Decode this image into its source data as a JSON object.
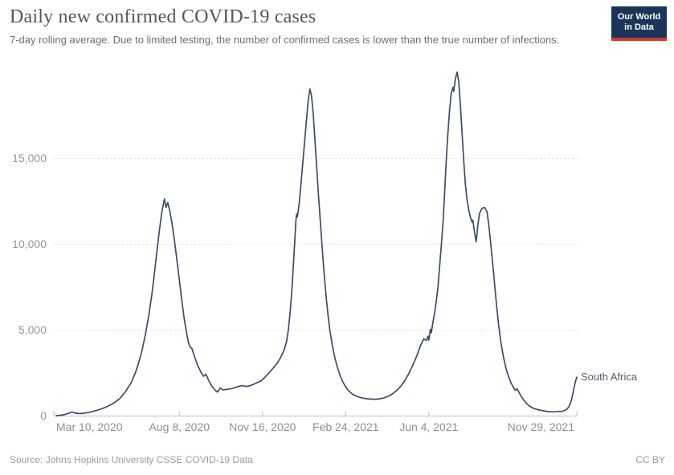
{
  "header": {
    "title": "Daily new confirmed COVID-19 cases",
    "subtitle": "7-day rolling average. Due to limited testing, the number of confirmed cases is lower than the true number of infections.",
    "logo": {
      "line1": "Our World",
      "line2": "in Data",
      "bg_color": "#1b3459",
      "accent_color": "#d13b2e",
      "text_color": "#ffffff"
    }
  },
  "footer": {
    "source": "Source: Johns Hopkins University CSSE COVID-19 Data",
    "license": "CC BY"
  },
  "chart_data": {
    "type": "line",
    "title": "Daily new confirmed COVID-19 cases",
    "series_name": "South Africa",
    "line_color": "#3d4e66",
    "label_color": "#515b6b",
    "grid": "horizontal-dashed",
    "legend_position": "end-of-line-label",
    "x_start_date": "2020-03-10",
    "x_unit": "days since 2020-03-10",
    "xlim_days": [
      0,
      629
    ],
    "ylim": [
      0,
      20500
    ],
    "x_ticks": [
      {
        "label": "Mar 10, 2020",
        "day": 0
      },
      {
        "label": "Aug 8, 2020",
        "day": 151
      },
      {
        "label": "Nov 16, 2020",
        "day": 251
      },
      {
        "label": "Feb 24, 2021",
        "day": 351
      },
      {
        "label": "Jun 4, 2021",
        "day": 451
      },
      {
        "label": "Nov 29, 2021",
        "day": 629
      }
    ],
    "y_ticks": [
      {
        "label": "0",
        "value": 0
      },
      {
        "label": "5,000",
        "value": 5000
      },
      {
        "label": "10,000",
        "value": 10000
      },
      {
        "label": "15,000",
        "value": 15000
      }
    ],
    "peaks_note": "wave1 ~12,600 (Jul 2020), wave2 ~19,000 (Jan 11 2021), wave3 ~20,000 (early Jul 2021), secondary bump ~12,100 (late Aug 2021), final uptick to ~2,260 (Nov 29 2021)",
    "points_day_value": [
      [
        3,
        15
      ],
      [
        8,
        45
      ],
      [
        13,
        90
      ],
      [
        18,
        160
      ],
      [
        22,
        235
      ],
      [
        26,
        170
      ],
      [
        31,
        140
      ],
      [
        37,
        170
      ],
      [
        44,
        230
      ],
      [
        51,
        320
      ],
      [
        58,
        430
      ],
      [
        65,
        570
      ],
      [
        72,
        750
      ],
      [
        79,
        1000
      ],
      [
        86,
        1400
      ],
      [
        93,
        1950
      ],
      [
        98,
        2500
      ],
      [
        102,
        3100
      ],
      [
        106,
        3800
      ],
      [
        110,
        4700
      ],
      [
        114,
        5800
      ],
      [
        118,
        7100
      ],
      [
        121,
        8300
      ],
      [
        124,
        9600
      ],
      [
        127,
        10800
      ],
      [
        130,
        11900
      ],
      [
        133,
        12640
      ],
      [
        135,
        12150
      ],
      [
        137,
        12430
      ],
      [
        139,
        12050
      ],
      [
        142,
        11250
      ],
      [
        145,
        10250
      ],
      [
        148,
        9100
      ],
      [
        151,
        7900
      ],
      [
        154,
        6700
      ],
      [
        157,
        5600
      ],
      [
        160,
        4750
      ],
      [
        162,
        4250
      ],
      [
        164,
        4020
      ],
      [
        166,
        3940
      ],
      [
        169,
        3500
      ],
      [
        173,
        2950
      ],
      [
        177,
        2550
      ],
      [
        180,
        2320
      ],
      [
        183,
        2430
      ],
      [
        186,
        2100
      ],
      [
        190,
        1750
      ],
      [
        194,
        1500
      ],
      [
        197,
        1400
      ],
      [
        200,
        1640
      ],
      [
        203,
        1530
      ],
      [
        208,
        1545
      ],
      [
        214,
        1600
      ],
      [
        220,
        1690
      ],
      [
        226,
        1770
      ],
      [
        232,
        1720
      ],
      [
        238,
        1800
      ],
      [
        244,
        1930
      ],
      [
        249,
        2040
      ],
      [
        254,
        2260
      ],
      [
        259,
        2530
      ],
      [
        264,
        2800
      ],
      [
        269,
        3100
      ],
      [
        273,
        3420
      ],
      [
        277,
        3850
      ],
      [
        280,
        4350
      ],
      [
        282,
        5000
      ],
      [
        284,
        5900
      ],
      [
        286,
        7100
      ],
      [
        288,
        8700
      ],
      [
        290,
        10300
      ],
      [
        291,
        11300
      ],
      [
        292,
        11760
      ],
      [
        293,
        11600
      ],
      [
        295,
        12300
      ],
      [
        298,
        13900
      ],
      [
        301,
        15600
      ],
      [
        304,
        17300
      ],
      [
        306,
        18400
      ],
      [
        308,
        19040
      ],
      [
        310,
        18650
      ],
      [
        312,
        17600
      ],
      [
        314,
        16100
      ],
      [
        316,
        14600
      ],
      [
        318,
        13100
      ],
      [
        320,
        11700
      ],
      [
        322,
        10300
      ],
      [
        324,
        9000
      ],
      [
        326,
        7800
      ],
      [
        328,
        6700
      ],
      [
        330,
        5800
      ],
      [
        332,
        5000
      ],
      [
        335,
        4100
      ],
      [
        338,
        3400
      ],
      [
        341,
        2850
      ],
      [
        344,
        2400
      ],
      [
        347,
        2050
      ],
      [
        350,
        1780
      ],
      [
        353,
        1560
      ],
      [
        356,
        1400
      ],
      [
        359,
        1280
      ],
      [
        363,
        1180
      ],
      [
        367,
        1100
      ],
      [
        372,
        1040
      ],
      [
        377,
        1000
      ],
      [
        382,
        985
      ],
      [
        387,
        975
      ],
      [
        392,
        1000
      ],
      [
        397,
        1055
      ],
      [
        402,
        1140
      ],
      [
        407,
        1280
      ],
      [
        412,
        1470
      ],
      [
        417,
        1720
      ],
      [
        422,
        2050
      ],
      [
        427,
        2470
      ],
      [
        432,
        2980
      ],
      [
        437,
        3560
      ],
      [
        441,
        4100
      ],
      [
        445,
        4500
      ],
      [
        448,
        4400
      ],
      [
        450,
        4650
      ],
      [
        451,
        4420
      ],
      [
        453,
        5050
      ],
      [
        454,
        4850
      ],
      [
        456,
        5450
      ],
      [
        458,
        6000
      ],
      [
        460,
        6700
      ],
      [
        462,
        7500
      ],
      [
        464,
        8700
      ],
      [
        466,
        9900
      ],
      [
        468,
        11200
      ],
      [
        470,
        12900
      ],
      [
        472,
        14900
      ],
      [
        474,
        16500
      ],
      [
        476,
        17800
      ],
      [
        478,
        18800
      ],
      [
        480,
        19150
      ],
      [
        481,
        18900
      ],
      [
        483,
        19650
      ],
      [
        485,
        20030
      ],
      [
        487,
        19500
      ],
      [
        489,
        18100
      ],
      [
        491,
        16500
      ],
      [
        493,
        14900
      ],
      [
        495,
        13500
      ],
      [
        497,
        12600
      ],
      [
        499,
        12000
      ],
      [
        501,
        11600
      ],
      [
        503,
        11300
      ],
      [
        504,
        11400
      ],
      [
        506,
        10700
      ],
      [
        508,
        10150
      ],
      [
        510,
        11100
      ],
      [
        512,
        11800
      ],
      [
        515,
        12100
      ],
      [
        518,
        12150
      ],
      [
        521,
        11900
      ],
      [
        523,
        11200
      ],
      [
        526,
        9800
      ],
      [
        529,
        8300
      ],
      [
        532,
        6700
      ],
      [
        535,
        5300
      ],
      [
        538,
        4200
      ],
      [
        541,
        3400
      ],
      [
        544,
        2750
      ],
      [
        547,
        2280
      ],
      [
        550,
        1920
      ],
      [
        553,
        1660
      ],
      [
        555,
        1500
      ],
      [
        557,
        1590
      ],
      [
        559,
        1420
      ],
      [
        562,
        1150
      ],
      [
        565,
        940
      ],
      [
        568,
        760
      ],
      [
        571,
        620
      ],
      [
        575,
        490
      ],
      [
        579,
        410
      ],
      [
        584,
        350
      ],
      [
        589,
        300
      ],
      [
        594,
        262
      ],
      [
        599,
        245
      ],
      [
        604,
        246
      ],
      [
        607,
        275
      ],
      [
        609,
        252
      ],
      [
        612,
        287
      ],
      [
        615,
        335
      ],
      [
        617,
        400
      ],
      [
        619,
        510
      ],
      [
        621,
        700
      ],
      [
        623,
        1020
      ],
      [
        625,
        1470
      ],
      [
        627,
        1940
      ],
      [
        629,
        2260
      ]
    ]
  }
}
